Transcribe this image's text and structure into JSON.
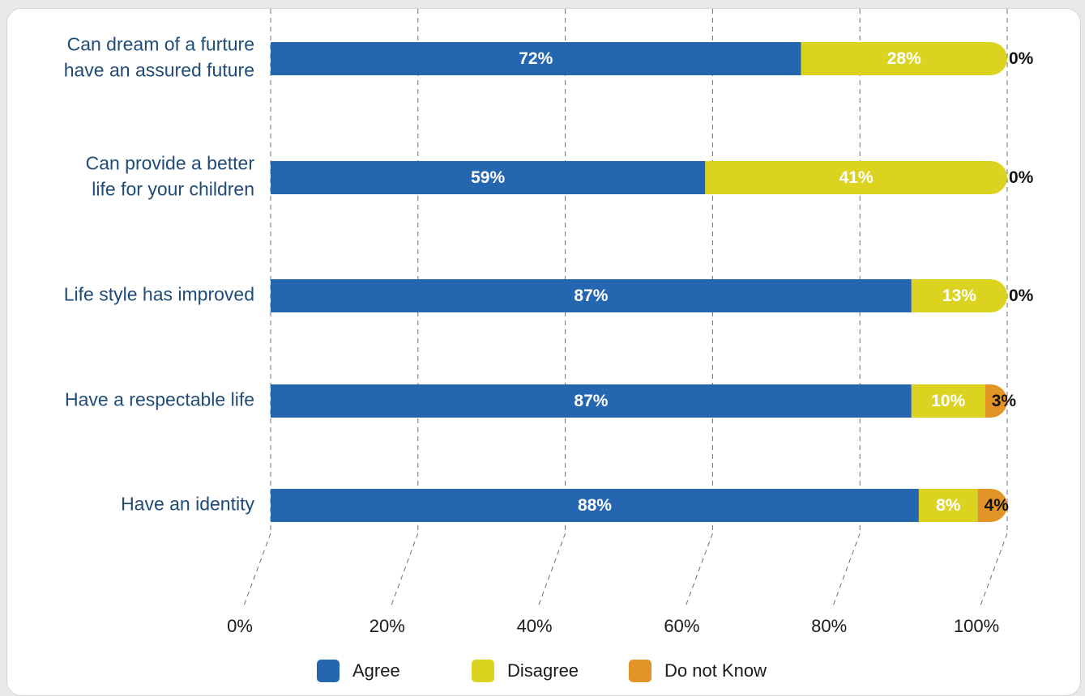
{
  "chart_data": {
    "type": "bar",
    "orientation": "horizontal",
    "stacked": true,
    "categories": [
      [
        "Can dream of a furture",
        "have an assured future"
      ],
      [
        "Can provide a better",
        "life for your children"
      ],
      [
        "Life style has improved"
      ],
      [
        "Have a respectable life"
      ],
      [
        "Have an identity"
      ]
    ],
    "series": [
      {
        "name": "Agree",
        "color": "#2566b0",
        "label_color": "#ffffff",
        "values": [
          72,
          59,
          87,
          87,
          88
        ]
      },
      {
        "name": "Disagree",
        "color": "#dcd321",
        "label_color": "#ffffff",
        "values": [
          28,
          41,
          13,
          10,
          8
        ]
      },
      {
        "name": "Do not Know",
        "color": "#e39427",
        "label_color": "#111111",
        "values": [
          0,
          0,
          0,
          3,
          4
        ]
      }
    ],
    "value_labels": [
      [
        "72%",
        "28%",
        "0%"
      ],
      [
        "59%",
        "41%",
        "0%"
      ],
      [
        "87%",
        "13%",
        "0%"
      ],
      [
        "87%",
        "10%",
        "3%"
      ],
      [
        "88%",
        "8%",
        "4%"
      ]
    ],
    "x_ticks": [
      "0%",
      "20%",
      "40%",
      "60%",
      "80%",
      "100%"
    ],
    "xlim": [
      0,
      100
    ],
    "grid": true,
    "legend": "bottom"
  }
}
